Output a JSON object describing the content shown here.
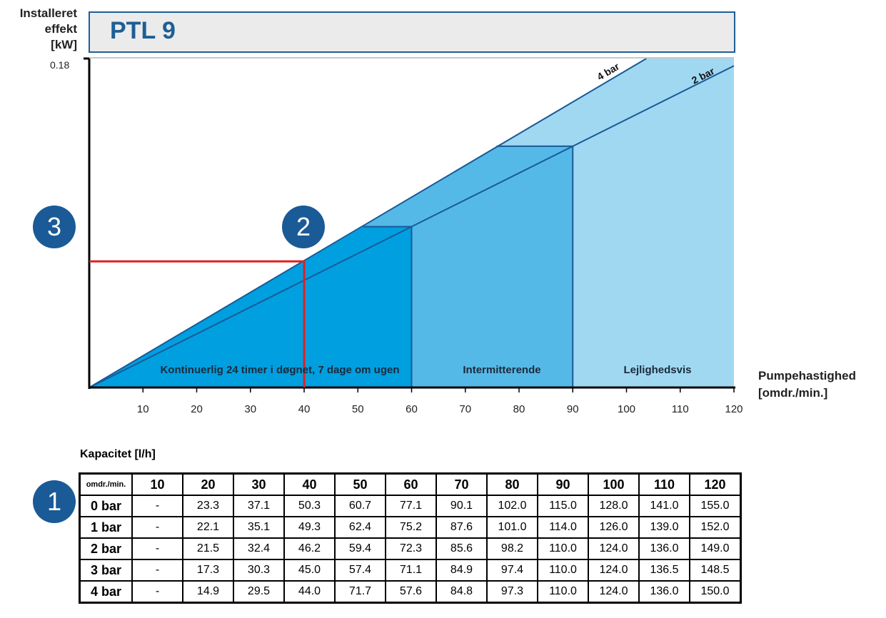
{
  "chart_data": {
    "type": "area",
    "title": "PTL 9",
    "ylabel": "Installeret effekt [kW]",
    "xlabel": "Pumpehastighed [omdr./min.]",
    "ylim": [
      0,
      0.18
    ],
    "xlim": [
      0,
      120
    ],
    "y_tick_labels": [
      "0.18"
    ],
    "x_ticks": [
      10,
      20,
      30,
      40,
      50,
      60,
      70,
      80,
      90,
      100,
      110,
      120
    ],
    "series": [
      {
        "name": "4 bar",
        "points": [
          [
            0,
            0
          ],
          [
            103.7,
            0.18
          ]
        ]
      },
      {
        "name": "2 bar",
        "points": [
          [
            0,
            0
          ],
          [
            120,
            0.176
          ]
        ]
      }
    ],
    "regions": [
      {
        "name": "Lejlighedsvis",
        "range": [
          90,
          120
        ],
        "color": "#a0d8f2"
      },
      {
        "name": "Intermitterende",
        "range": [
          60,
          90
        ],
        "color": "#55b9e8"
      },
      {
        "name": "Kontinuerlig 24 timer i døgnet, 7 dage om ugen",
        "range": [
          0,
          60
        ],
        "color": "#009fe0"
      }
    ],
    "region_tops": [
      {
        "x4": 51,
        "x2": 60,
        "y": 0.088
      },
      {
        "x4": 75.8,
        "x2": 90,
        "y": 0.132
      }
    ],
    "marker": {
      "rpm": 40,
      "kw": 0.069,
      "color": "#e02020"
    },
    "callouts": [
      "1",
      "2",
      "3"
    ]
  },
  "table": {
    "caption": "Kapacitet [l/h]",
    "corner": "omdr./min.",
    "columns": [
      "10",
      "20",
      "30",
      "40",
      "50",
      "60",
      "70",
      "80",
      "90",
      "100",
      "110",
      "120"
    ],
    "rows": [
      {
        "label": "0 bar",
        "values": [
          "-",
          "23.3",
          "37.1",
          "50.3",
          "60.7",
          "77.1",
          "90.1",
          "102.0",
          "115.0",
          "128.0",
          "141.0",
          "155.0"
        ]
      },
      {
        "label": "1 bar",
        "values": [
          "-",
          "22.1",
          "35.1",
          "49.3",
          "62.4",
          "75.2",
          "87.6",
          "101.0",
          "114.0",
          "126.0",
          "139.0",
          "152.0"
        ]
      },
      {
        "label": "2 bar",
        "values": [
          "-",
          "21.5",
          "32.4",
          "46.2",
          "59.4",
          "72.3",
          "85.6",
          "98.2",
          "110.0",
          "124.0",
          "136.0",
          "149.0"
        ]
      },
      {
        "label": "3 bar",
        "values": [
          "-",
          "17.3",
          "30.3",
          "45.0",
          "57.4",
          "71.1",
          "84.9",
          "97.4",
          "110.0",
          "124.0",
          "136.5",
          "148.5"
        ]
      },
      {
        "label": "4 bar",
        "values": [
          "-",
          "14.9",
          "29.5",
          "44.0",
          "71.7",
          "57.6",
          "84.8",
          "97.3",
          "110.0",
          "124.0",
          "136.0",
          "150.0"
        ]
      }
    ]
  },
  "labels": {
    "ylabel_1": "Installeret",
    "ylabel_2": "effekt",
    "ylabel_3": "[kW]",
    "xlabel_1": "Pumpehastighed",
    "xlabel_2": "[omdr./min.]"
  }
}
